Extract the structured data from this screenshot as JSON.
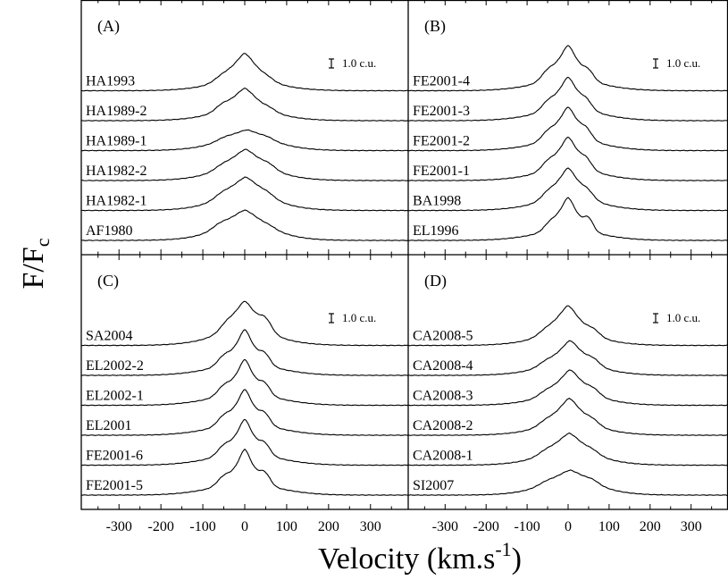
{
  "chart_data": {
    "type": "line",
    "ylabel_main": "F/F",
    "ylabel_sub": "c",
    "xlabel_main": "Velocity (km.s",
    "xlabel_sup": "-1",
    "xlabel_close": ")",
    "x_ticks": [
      -300,
      -200,
      -100,
      0,
      100,
      200,
      300
    ],
    "xlim": [
      -390,
      390
    ],
    "scale_bar_label": "1.0 c.u.",
    "panels": [
      {
        "label": "(A)",
        "spectra": [
          {
            "name": "AF1980",
            "peak": 0.62,
            "width": 58,
            "wing": 0.25,
            "shoulder": 0.1,
            "sh_pos": -60,
            "sh_w": 25,
            "bump": 0.04,
            "bump_pos": 60,
            "bump_w": 20,
            "center": 0
          },
          {
            "name": "HA1982-1",
            "peak": 0.68,
            "width": 52,
            "wing": 0.28,
            "shoulder": 0.1,
            "sh_pos": -55,
            "sh_w": 25,
            "bump": 0.08,
            "bump_pos": 55,
            "bump_w": 22,
            "center": 2
          },
          {
            "name": "HA1982-2",
            "peak": 0.62,
            "width": 50,
            "wing": 0.28,
            "shoulder": 0.08,
            "sh_pos": -55,
            "sh_w": 25,
            "bump": 0.1,
            "bump_pos": 58,
            "bump_w": 22,
            "center": 2
          },
          {
            "name": "HA1989-1",
            "peak": 0.38,
            "width": 60,
            "wing": 0.22,
            "shoulder": 0.06,
            "sh_pos": -50,
            "sh_w": 25,
            "bump": 0.05,
            "bump_pos": 55,
            "bump_w": 20,
            "center": 5
          },
          {
            "name": "HA1989-2",
            "peak": 0.68,
            "width": 45,
            "wing": 0.25,
            "shoulder": 0.12,
            "sh_pos": -55,
            "sh_w": 22,
            "bump": 0.06,
            "bump_pos": 60,
            "bump_w": 20,
            "center": 0
          },
          {
            "name": "HA1993",
            "peak": 0.82,
            "width": 42,
            "wing": 0.25,
            "shoulder": 0.1,
            "sh_pos": -55,
            "sh_w": 25,
            "bump": 0.06,
            "bump_pos": 55,
            "bump_w": 20,
            "center": 0
          }
        ]
      },
      {
        "label": "(B)",
        "spectra": [
          {
            "name": "EL1996",
            "peak": 0.95,
            "width": 32,
            "wing": 0.28,
            "shoulder": 0.15,
            "sh_pos": -45,
            "sh_w": 20,
            "bump": 0.3,
            "bump_pos": 50,
            "bump_w": 16,
            "center": 0
          },
          {
            "name": "BA1998",
            "peak": 0.92,
            "width": 38,
            "wing": 0.3,
            "shoulder": 0.14,
            "sh_pos": -50,
            "sh_w": 22,
            "bump": 0.16,
            "bump_pos": 48,
            "bump_w": 20,
            "center": 0
          },
          {
            "name": "FE2001-1",
            "peak": 0.95,
            "width": 35,
            "wing": 0.3,
            "shoulder": 0.18,
            "sh_pos": -50,
            "sh_w": 22,
            "bump": 0.2,
            "bump_pos": 45,
            "bump_w": 18,
            "center": 0
          },
          {
            "name": "FE2001-2",
            "peak": 0.95,
            "width": 35,
            "wing": 0.3,
            "shoulder": 0.18,
            "sh_pos": -50,
            "sh_w": 22,
            "bump": 0.2,
            "bump_pos": 45,
            "bump_w": 18,
            "center": 0
          },
          {
            "name": "FE2001-3",
            "peak": 0.95,
            "width": 35,
            "wing": 0.3,
            "shoulder": 0.18,
            "sh_pos": -50,
            "sh_w": 22,
            "bump": 0.18,
            "bump_pos": 45,
            "bump_w": 18,
            "center": 0
          },
          {
            "name": "FE2001-4",
            "peak": 1.0,
            "width": 35,
            "wing": 0.3,
            "shoulder": 0.2,
            "sh_pos": -50,
            "sh_w": 22,
            "bump": 0.2,
            "bump_pos": 50,
            "bump_w": 18,
            "center": 0
          }
        ]
      },
      {
        "label": "(C)",
        "spectra": [
          {
            "name": "FE2001-5",
            "peak": 1.0,
            "width": 28,
            "wing": 0.32,
            "shoulder": 0.22,
            "sh_pos": -50,
            "sh_w": 22,
            "bump": 0.3,
            "bump_pos": 48,
            "bump_w": 18,
            "center": 0
          },
          {
            "name": "FE2001-6",
            "peak": 1.0,
            "width": 30,
            "wing": 0.32,
            "shoulder": 0.22,
            "sh_pos": -50,
            "sh_w": 22,
            "bump": 0.26,
            "bump_pos": 48,
            "bump_w": 18,
            "center": 0
          },
          {
            "name": "EL2001",
            "peak": 1.0,
            "width": 30,
            "wing": 0.32,
            "shoulder": 0.22,
            "sh_pos": -50,
            "sh_w": 22,
            "bump": 0.26,
            "bump_pos": 48,
            "bump_w": 18,
            "center": 0
          },
          {
            "name": "EL2002-1",
            "peak": 1.0,
            "width": 30,
            "wing": 0.32,
            "shoulder": 0.22,
            "sh_pos": -50,
            "sh_w": 22,
            "bump": 0.26,
            "bump_pos": 48,
            "bump_w": 18,
            "center": 0
          },
          {
            "name": "EL2002-2",
            "peak": 1.0,
            "width": 30,
            "wing": 0.32,
            "shoulder": 0.22,
            "sh_pos": -50,
            "sh_w": 22,
            "bump": 0.26,
            "bump_pos": 48,
            "bump_w": 18,
            "center": 0
          },
          {
            "name": "SA2004",
            "peak": 0.95,
            "width": 42,
            "wing": 0.32,
            "shoulder": 0.12,
            "sh_pos": -45,
            "sh_w": 20,
            "bump": 0.28,
            "bump_pos": 50,
            "bump_w": 20,
            "center": 0
          }
        ]
      },
      {
        "label": "(D)",
        "spectra": [
          {
            "name": "SI2007",
            "peak": 0.48,
            "width": 58,
            "wing": 0.24,
            "shoulder": 0.06,
            "sh_pos": -55,
            "sh_w": 25,
            "bump": 0.08,
            "bump_pos": 60,
            "bump_w": 22,
            "center": 5
          },
          {
            "name": "CA2008-1",
            "peak": 0.64,
            "width": 48,
            "wing": 0.28,
            "shoulder": 0.08,
            "sh_pos": -55,
            "sh_w": 25,
            "bump": 0.08,
            "bump_pos": 60,
            "bump_w": 22,
            "center": 3
          },
          {
            "name": "CA2008-2",
            "peak": 0.78,
            "width": 42,
            "wing": 0.28,
            "shoulder": 0.1,
            "sh_pos": -55,
            "sh_w": 25,
            "bump": 0.12,
            "bump_pos": 60,
            "bump_w": 22,
            "center": 3
          },
          {
            "name": "CA2008-3",
            "peak": 0.74,
            "width": 42,
            "wing": 0.28,
            "shoulder": 0.1,
            "sh_pos": -55,
            "sh_w": 25,
            "bump": 0.14,
            "bump_pos": 62,
            "bump_w": 22,
            "center": 5
          },
          {
            "name": "CA2008-4",
            "peak": 0.72,
            "width": 42,
            "wing": 0.28,
            "shoulder": 0.1,
            "sh_pos": -55,
            "sh_w": 25,
            "bump": 0.14,
            "bump_pos": 62,
            "bump_w": 22,
            "center": 5
          },
          {
            "name": "CA2008-5",
            "peak": 0.86,
            "width": 42,
            "wing": 0.28,
            "shoulder": 0.1,
            "sh_pos": -55,
            "sh_w": 25,
            "bump": 0.14,
            "bump_pos": 62,
            "bump_w": 22,
            "center": 0
          }
        ]
      }
    ]
  }
}
